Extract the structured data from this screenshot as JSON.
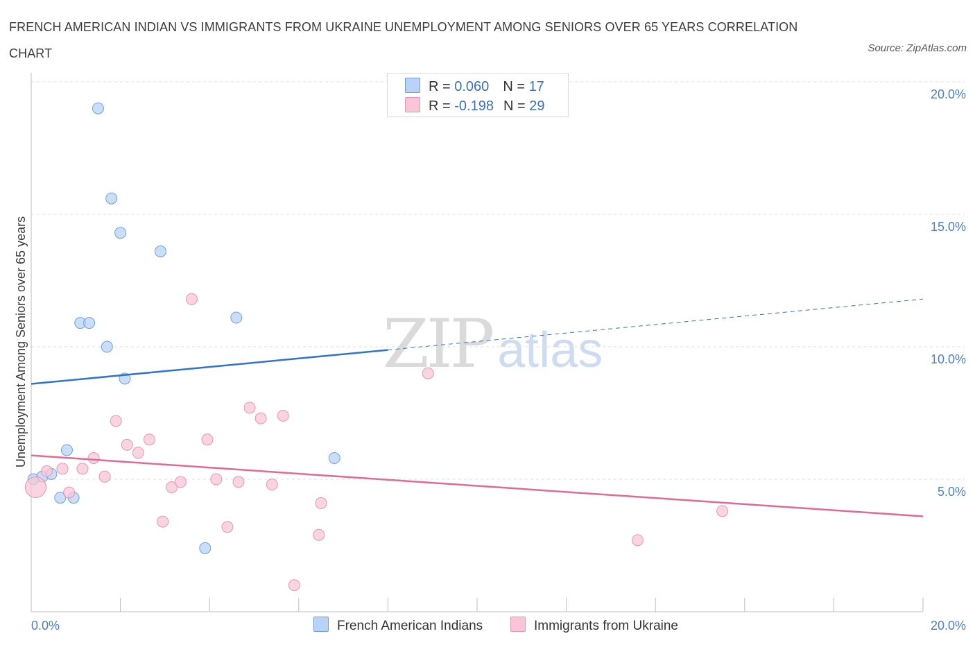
{
  "title": "FRENCH AMERICAN INDIAN VS IMMIGRANTS FROM UKRAINE UNEMPLOYMENT AMONG SENIORS OVER 65 YEARS CORRELATION CHART",
  "source": "Source: ZipAtlas.com",
  "watermark": {
    "zip": "ZIP",
    "atlas": "atlas"
  },
  "legend": {
    "rows": [
      {
        "r_label": "R = ",
        "r_value": "0.060",
        "n_label": "N = ",
        "n_value": "17",
        "color": "#b9d3f6"
      },
      {
        "r_label": "R = ",
        "r_value": "-0.198",
        "n_label": "N = ",
        "n_value": "29",
        "color": "#f8c6d6"
      }
    ]
  },
  "bottom_legend": [
    {
      "label": "French American Indians",
      "color": "#b9d3f6"
    },
    {
      "label": "Immigrants from Ukraine",
      "color": "#f8c6d6"
    }
  ],
  "chart_data": {
    "type": "scatter",
    "title": "FRENCH AMERICAN INDIAN VS IMMIGRANTS FROM UKRAINE UNEMPLOYMENT AMONG SENIORS OVER 65 YEARS CORRELATION CHART",
    "xlabel": "",
    "ylabel": "Unemployment Among Seniors over 65 years",
    "xlim": [
      0,
      20
    ],
    "ylim": [
      0,
      20
    ],
    "x_tick_labels": [
      "0.0%",
      "20.0%"
    ],
    "y_ticks": [
      5,
      10,
      15,
      20
    ],
    "y_tick_labels": [
      "5.0%",
      "10.0%",
      "15.0%",
      "20.0%"
    ],
    "grid": true,
    "legend_position": "top-center",
    "series": [
      {
        "name": "French American Indians",
        "color": "#b9d3f6",
        "stroke": "#6d9fe0",
        "trend_color": "#2f72d0",
        "trend": {
          "x0": 0.0,
          "y0": 8.6,
          "x1": 20.0,
          "y1": 11.8,
          "solid_until_x": 8.0
        },
        "points": [
          {
            "x": 0.05,
            "y": 5.0
          },
          {
            "x": 0.25,
            "y": 5.1
          },
          {
            "x": 0.45,
            "y": 5.2
          },
          {
            "x": 0.65,
            "y": 4.3
          },
          {
            "x": 0.8,
            "y": 6.1
          },
          {
            "x": 0.95,
            "y": 4.3
          },
          {
            "x": 1.1,
            "y": 10.9
          },
          {
            "x": 1.3,
            "y": 10.9
          },
          {
            "x": 1.5,
            "y": 19.0
          },
          {
            "x": 1.7,
            "y": 10.0
          },
          {
            "x": 1.8,
            "y": 15.6
          },
          {
            "x": 2.0,
            "y": 14.3
          },
          {
            "x": 2.1,
            "y": 8.8
          },
          {
            "x": 2.9,
            "y": 13.6
          },
          {
            "x": 3.9,
            "y": 2.4
          },
          {
            "x": 4.6,
            "y": 11.1
          },
          {
            "x": 6.8,
            "y": 5.8
          }
        ]
      },
      {
        "name": "Immigrants from Ukraine",
        "color": "#f8c6d6",
        "stroke": "#ea93b0",
        "trend_color": "#e06a92",
        "trend": {
          "x0": 0.0,
          "y0": 5.9,
          "x1": 20.0,
          "y1": 3.6,
          "solid_until_x": 20.0
        },
        "points": [
          {
            "x": 0.1,
            "y": 4.7,
            "big": true
          },
          {
            "x": 0.35,
            "y": 5.3
          },
          {
            "x": 0.7,
            "y": 5.4
          },
          {
            "x": 0.85,
            "y": 4.5
          },
          {
            "x": 1.15,
            "y": 5.4
          },
          {
            "x": 1.4,
            "y": 5.8
          },
          {
            "x": 1.65,
            "y": 5.1
          },
          {
            "x": 1.9,
            "y": 7.2
          },
          {
            "x": 2.15,
            "y": 6.3
          },
          {
            "x": 2.4,
            "y": 6.0
          },
          {
            "x": 2.65,
            "y": 6.5
          },
          {
            "x": 2.95,
            "y": 3.4
          },
          {
            "x": 3.15,
            "y": 4.7
          },
          {
            "x": 3.35,
            "y": 4.9
          },
          {
            "x": 3.6,
            "y": 11.8
          },
          {
            "x": 3.95,
            "y": 6.5
          },
          {
            "x": 4.15,
            "y": 5.0
          },
          {
            "x": 4.4,
            "y": 3.2
          },
          {
            "x": 4.65,
            "y": 4.9
          },
          {
            "x": 4.9,
            "y": 7.7
          },
          {
            "x": 5.15,
            "y": 7.3
          },
          {
            "x": 5.4,
            "y": 4.8
          },
          {
            "x": 5.65,
            "y": 7.4
          },
          {
            "x": 5.9,
            "y": 1.0
          },
          {
            "x": 6.45,
            "y": 2.9
          },
          {
            "x": 6.5,
            "y": 4.1
          },
          {
            "x": 8.9,
            "y": 9.0
          },
          {
            "x": 13.6,
            "y": 2.7
          },
          {
            "x": 15.5,
            "y": 3.8
          }
        ]
      }
    ]
  }
}
